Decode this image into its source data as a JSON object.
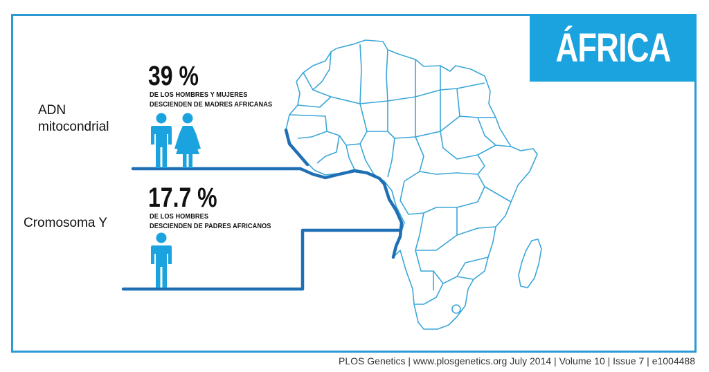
{
  "title": "ÁFRICA",
  "rows": [
    {
      "label_lines": [
        "ADN",
        "mitocondrial"
      ],
      "percent": "39 %",
      "desc_lines": [
        "DE LOS HOMBRES Y MUJERES",
        "DESCIENDEN DE MADRES AFRICANAS"
      ],
      "icons": [
        "male-person-icon",
        "female-person-icon"
      ]
    },
    {
      "label_lines": [
        "Cromosoma Y"
      ],
      "percent": "17.7 %",
      "desc_lines": [
        "DE  LOS HOMBRES",
        "DESCIENDEN DE PADRES AFRICANOS"
      ],
      "icons": [
        "male-person-icon"
      ]
    }
  ],
  "footer": "PLOS Genetics | www.plosgenetics.org July 2014 | Volume 10 | Issue 7 | e1004488",
  "colors": {
    "accent": "#1aa3de",
    "frame": "#2b9ad4",
    "line": "#1f6fb5",
    "icon": "#1aa3de",
    "map_outline": "#3aa6d8"
  }
}
